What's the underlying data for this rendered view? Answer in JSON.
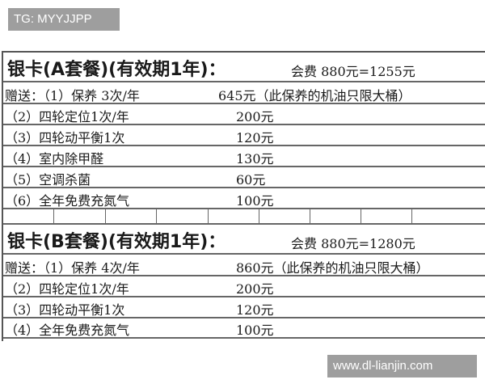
{
  "watermarks": {
    "top": "TG: MYYJJPP",
    "bottom": "www.dl-lianjin.com"
  },
  "card_a": {
    "title": "银卡(A套餐)(有效期1年)：",
    "fee": "会费 880元=1255元",
    "gift_label": "赠送：（1）保养 3次/年",
    "gift_value": "645元（此保养的机油只限大桶）",
    "items": [
      {
        "name": "（2）四轮定位1次/年",
        "price": "200元"
      },
      {
        "name": "（3）四轮动平衡1次",
        "price": "120元"
      },
      {
        "name": "（4）室内除甲醛",
        "price": "130元"
      },
      {
        "name": "（5）空调杀菌",
        "price": "60元"
      },
      {
        "name": "（6）全年免费充氮气",
        "price": "100元"
      }
    ]
  },
  "card_b": {
    "title": "银卡(B套餐)(有效期1年)：",
    "fee": "会费 880元=1280元",
    "gift_label": "赠送：（1）保养 4次/年",
    "gift_value": "860元（此保养的机油只限大桶）",
    "items": [
      {
        "name": "（2）四轮定位1次/年",
        "price": "200元"
      },
      {
        "name": "（3）四轮动平衡1次",
        "price": "120元"
      },
      {
        "name": "（4）全年免费充氮气",
        "price": "100元"
      }
    ]
  }
}
